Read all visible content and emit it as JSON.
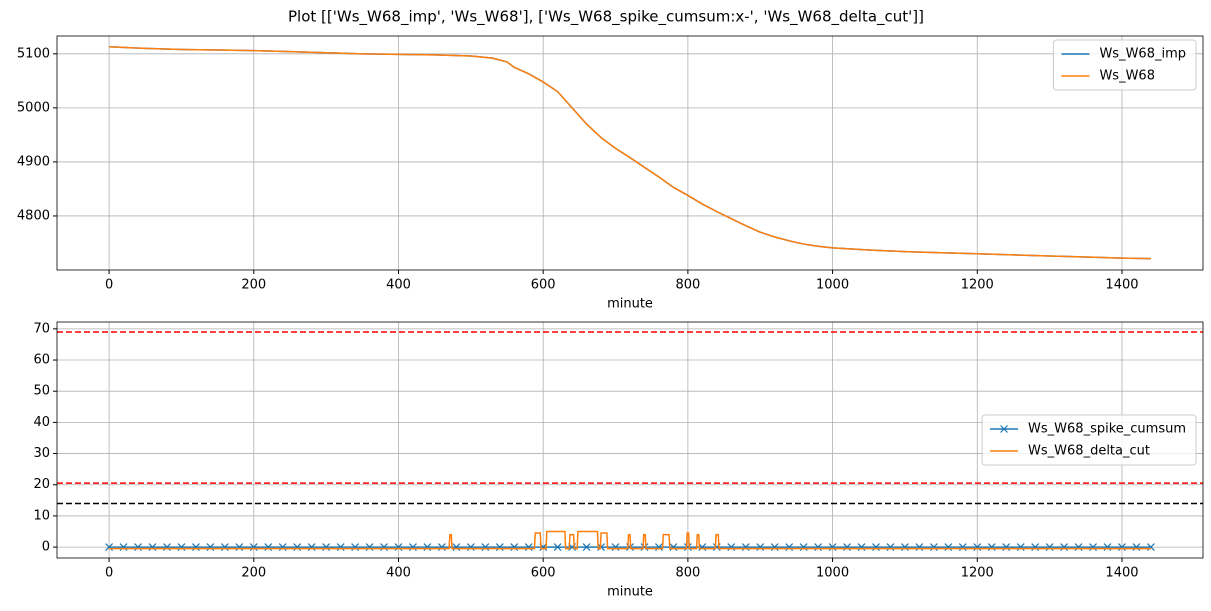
{
  "title": "Plot [['Ws_W68_imp', 'Ws_W68'], ['Ws_W68_spike_cumsum:x-', 'Ws_W68_delta_cut']]",
  "chart_data": [
    {
      "type": "line",
      "xlabel": "minute",
      "xlim": [
        -72,
        1512
      ],
      "ylim": [
        4700,
        5133
      ],
      "xticks": [
        0,
        200,
        400,
        600,
        800,
        1000,
        1200,
        1400
      ],
      "yticks": [
        4800,
        4900,
        5000,
        5100
      ],
      "grid": true,
      "legend": "upper right",
      "x": [
        0,
        50,
        100,
        150,
        200,
        250,
        300,
        350,
        400,
        450,
        500,
        530,
        550,
        560,
        580,
        600,
        620,
        640,
        660,
        680,
        700,
        720,
        740,
        760,
        780,
        800,
        820,
        840,
        860,
        880,
        900,
        920,
        940,
        960,
        980,
        1000,
        1050,
        1100,
        1150,
        1200,
        1250,
        1300,
        1350,
        1400,
        1440
      ],
      "series": [
        {
          "name": "Ws_W68_imp",
          "color": "#1f77b4",
          "values": [
            5113,
            5110,
            5108,
            5107,
            5106,
            5104,
            5102,
            5100,
            5099,
            5098,
            5096,
            5092,
            5085,
            5075,
            5063,
            5048,
            5030,
            5000,
            4970,
            4945,
            4925,
            4908,
            4890,
            4872,
            4853,
            4838,
            4822,
            4808,
            4795,
            4782,
            4770,
            4761,
            4754,
            4748,
            4744,
            4741,
            4737,
            4734,
            4732,
            4730,
            4728,
            4726,
            4724,
            4722,
            4721
          ]
        },
        {
          "name": "Ws_W68",
          "color": "#ff7f0e",
          "values": [
            5113,
            5110,
            5108,
            5107,
            5106,
            5104,
            5102,
            5100,
            5099,
            5098,
            5096,
            5092,
            5085,
            5075,
            5063,
            5048,
            5030,
            5000,
            4970,
            4945,
            4925,
            4908,
            4890,
            4872,
            4853,
            4838,
            4822,
            4808,
            4795,
            4782,
            4770,
            4761,
            4754,
            4748,
            4744,
            4741,
            4737,
            4734,
            4732,
            4730,
            4728,
            4726,
            4724,
            4722,
            4721
          ]
        }
      ]
    },
    {
      "type": "line",
      "xlabel": "minute",
      "xlim": [
        -72,
        1512
      ],
      "ylim": [
        -3.5,
        72.2
      ],
      "xticks": [
        0,
        200,
        400,
        600,
        800,
        1000,
        1200,
        1400
      ],
      "yticks": [
        0,
        10,
        20,
        30,
        40,
        50,
        60,
        70
      ],
      "grid": true,
      "legend": "center right",
      "hlines": [
        {
          "value": 69,
          "color": "#ff0000"
        },
        {
          "value": 20.5,
          "color": "#ff0000"
        },
        {
          "value": 14,
          "color": "#000000"
        }
      ],
      "series": [
        {
          "name": "Ws_W68_spike_cumsum",
          "color": "#1f77b4",
          "marker": "x",
          "x": [
            0,
            20,
            40,
            60,
            80,
            100,
            120,
            140,
            160,
            180,
            200,
            220,
            240,
            260,
            280,
            300,
            320,
            340,
            360,
            380,
            400,
            420,
            440,
            460,
            480,
            500,
            520,
            540,
            560,
            580,
            600,
            620,
            640,
            660,
            680,
            700,
            720,
            740,
            760,
            780,
            800,
            820,
            840,
            860,
            880,
            900,
            920,
            940,
            960,
            980,
            1000,
            1020,
            1040,
            1060,
            1080,
            1100,
            1120,
            1140,
            1160,
            1180,
            1200,
            1220,
            1240,
            1260,
            1280,
            1300,
            1320,
            1340,
            1360,
            1380,
            1400,
            1420,
            1440
          ],
          "values": [
            0,
            0,
            0,
            0,
            0,
            0,
            0,
            0,
            0,
            0,
            0,
            0,
            0,
            0,
            0,
            0,
            0,
            0,
            0,
            0,
            0,
            0,
            0,
            0,
            0,
            0,
            0,
            0,
            0,
            0,
            0,
            0,
            0,
            0,
            0,
            0,
            0,
            0,
            0,
            0,
            0,
            0,
            0,
            0,
            0,
            0,
            0,
            0,
            0,
            0,
            0,
            0,
            0,
            0,
            0,
            0,
            0,
            0,
            0,
            0,
            0,
            0,
            0,
            0,
            0,
            0,
            0,
            0,
            0,
            0,
            0,
            0,
            0
          ]
        },
        {
          "name": "Ws_W68_delta_cut",
          "color": "#ff7f0e",
          "x": [
            0,
            470,
            471,
            473,
            474,
            588,
            589,
            596,
            597,
            604,
            605,
            630,
            631,
            636,
            637,
            642,
            643,
            647,
            648,
            675,
            676,
            679,
            680,
            688,
            689,
            717,
            718,
            720,
            721,
            738,
            739,
            741,
            742,
            765,
            766,
            774,
            775,
            798,
            799,
            801,
            802,
            812,
            813,
            815,
            816,
            838,
            839,
            842,
            843,
            1440
          ],
          "values": [
            -0.5,
            -0.5,
            4,
            4,
            -0.5,
            -0.5,
            4.5,
            4.5,
            -0.5,
            -0.5,
            5,
            5,
            -0.5,
            -0.5,
            4,
            4,
            -0.5,
            -0.5,
            5,
            5,
            -0.5,
            -0.5,
            4.5,
            4.5,
            -0.5,
            -0.5,
            4,
            4,
            -0.5,
            -0.5,
            4,
            4,
            -0.5,
            -0.5,
            4,
            4,
            -0.5,
            -0.5,
            4.5,
            4.5,
            -0.5,
            -0.5,
            4,
            4,
            -0.5,
            -0.5,
            4,
            4,
            -0.5,
            -0.5
          ]
        }
      ]
    }
  ]
}
